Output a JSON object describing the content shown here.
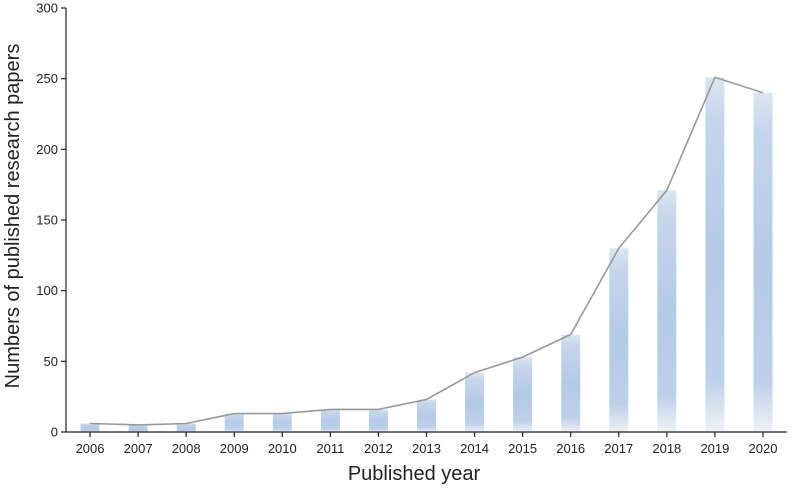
{
  "chart_data": {
    "type": "bar",
    "title": "",
    "xlabel": "Published year",
    "ylabel": "Numbers of published research papers",
    "ylim": [
      0,
      300
    ],
    "yticks": [
      0,
      50,
      100,
      150,
      200,
      250,
      300
    ],
    "categories": [
      "2006",
      "2007",
      "2008",
      "2009",
      "2010",
      "2011",
      "2012",
      "2013",
      "2014",
      "2015",
      "2016",
      "2017",
      "2018",
      "2019",
      "2020"
    ],
    "values": [
      6,
      5,
      6,
      13,
      13,
      16,
      16,
      23,
      42,
      53,
      69,
      130,
      171,
      251,
      240
    ],
    "line_overlay": true,
    "grid": false,
    "legend": "none",
    "colors": {
      "bar_top": "#dce6f0",
      "bar_mid": "#b4cbe6",
      "bar_bottom": "#eef2f6",
      "line": "#999999",
      "axis": "#222222"
    }
  }
}
